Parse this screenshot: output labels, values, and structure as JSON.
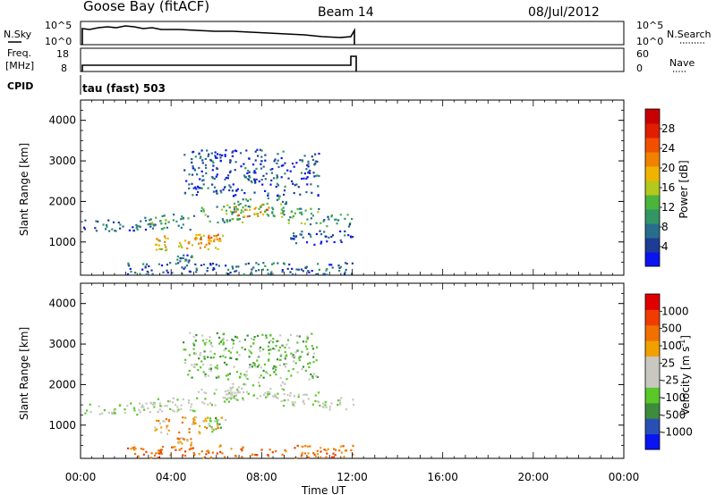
{
  "header": {
    "station": "Goose Bay (fitACF)",
    "beam": "Beam 14",
    "date": "08/Jul/2012"
  },
  "panels": {
    "nsky": {
      "label": "N.Sky",
      "tick_labels": [
        "10^5",
        "10^0"
      ],
      "right_label": "N.Search",
      "right_tick_labels": [
        "10^5",
        "10^0"
      ]
    },
    "freq": {
      "label_line1": "Freq.",
      "label_line2": "[MHz]",
      "tick_labels": [
        "18",
        "8"
      ],
      "right_label": "Nave",
      "right_tick_labels": [
        "60",
        "0"
      ]
    },
    "cpid": {
      "label": "CPID",
      "value": "tau (fast) 503"
    }
  },
  "chart_data": [
    {
      "type": "heatmap",
      "name": "power",
      "ylabel": "Slant Range [km]",
      "yticks": [
        "4000",
        "3000",
        "2000",
        "1000"
      ],
      "ytick_values": [
        4000,
        3000,
        2000,
        1000
      ],
      "ylim": [
        180,
        4500
      ],
      "xlim": [
        0,
        24
      ],
      "colorbar": {
        "label": "Power [dB]",
        "ticks": [
          "28",
          "24",
          "20",
          "16",
          "12",
          "8",
          "4"
        ],
        "tick_values": [
          28,
          24,
          20,
          16,
          12,
          8,
          4
        ],
        "range": [
          0,
          32
        ],
        "colors": [
          "#0a14f0",
          "#1e3c96",
          "#286e8c",
          "#329664",
          "#4bb43c",
          "#b4c81e",
          "#f0b400",
          "#f08200",
          "#f05000",
          "#e01e00",
          "#c80000"
        ]
      },
      "regions": [
        {
          "t0": 0.1,
          "t1": 3.6,
          "r0": 1280,
          "r1": 1560,
          "dB": 6
        },
        {
          "t0": 2.8,
          "t1": 5.0,
          "r0": 1320,
          "r1": 1700,
          "dB": 10
        },
        {
          "t0": 3.2,
          "t1": 3.9,
          "r0": 780,
          "r1": 1180,
          "dB": 18
        },
        {
          "t0": 4.3,
          "t1": 6.4,
          "r0": 820,
          "r1": 1220,
          "dB": 19
        },
        {
          "t0": 4.7,
          "t1": 6.0,
          "r0": 980,
          "r1": 1180,
          "dB": 22
        },
        {
          "t0": 4.2,
          "t1": 4.9,
          "r0": 520,
          "r1": 700,
          "dB": 7
        },
        {
          "t0": 5.0,
          "t1": 7.2,
          "r0": 1500,
          "r1": 1900,
          "dB": 12
        },
        {
          "t0": 6.4,
          "t1": 9.2,
          "r0": 1650,
          "r1": 2100,
          "dB": 11
        },
        {
          "t0": 6.8,
          "t1": 8.3,
          "r0": 1650,
          "r1": 1950,
          "dB": 20
        },
        {
          "t0": 8.8,
          "t1": 10.6,
          "r0": 1450,
          "r1": 1850,
          "dB": 12
        },
        {
          "t0": 10.6,
          "t1": 12.1,
          "r0": 1400,
          "r1": 1700,
          "dB": 9
        },
        {
          "t0": 9.2,
          "t1": 12.0,
          "r0": 950,
          "r1": 1300,
          "dB": 5
        },
        {
          "t0": 4.5,
          "t1": 10.5,
          "r0": 2150,
          "r1": 3300,
          "dB": 5
        },
        {
          "t0": 2.0,
          "t1": 12.0,
          "r0": 210,
          "r1": 520,
          "dB": 6
        }
      ]
    },
    {
      "type": "heatmap",
      "name": "velocity",
      "ylabel": "Slant Range [km]",
      "yticks": [
        "4000",
        "3000",
        "2000",
        "1000"
      ],
      "ytick_values": [
        4000,
        3000,
        2000,
        1000
      ],
      "ylim": [
        180,
        4500
      ],
      "xlim": [
        0,
        24
      ],
      "xticks": [
        "00:00",
        "04:00",
        "08:00",
        "12:00",
        "16:00",
        "20:00",
        "00:00"
      ],
      "xtick_values": [
        0,
        4,
        8,
        12,
        16,
        20,
        24
      ],
      "xlabel": "Time UT",
      "colorbar": {
        "label": "Velocity [m s",
        "label_sup": "-1",
        "label_end": "]",
        "ticks": [
          "1000",
          "500",
          "100",
          "25",
          "-25",
          "-100",
          "-500",
          "-1000"
        ],
        "colors": [
          "#0a14f0",
          "#2850b4",
          "#3c8c3c",
          "#5ac828",
          "#c8c8c0",
          "#c8c8c0",
          "#f0a000",
          "#f07000",
          "#f03c00",
          "#e00000"
        ]
      },
      "regions": [
        {
          "t0": 0.1,
          "t1": 3.6,
          "r0": 1280,
          "r1": 1560,
          "band": 4
        },
        {
          "t0": 2.8,
          "t1": 5.0,
          "r0": 1320,
          "r1": 1700,
          "band": 4
        },
        {
          "t0": 3.2,
          "t1": 3.9,
          "r0": 780,
          "r1": 1180,
          "band": 6
        },
        {
          "t0": 4.3,
          "t1": 6.4,
          "r0": 820,
          "r1": 1220,
          "band": 6
        },
        {
          "t0": 5.6,
          "t1": 6.2,
          "r0": 850,
          "r1": 1200,
          "band": 3
        },
        {
          "t0": 4.2,
          "t1": 4.9,
          "r0": 520,
          "r1": 700,
          "band": 6
        },
        {
          "t0": 5.0,
          "t1": 7.2,
          "r0": 1500,
          "r1": 1900,
          "band": 4
        },
        {
          "t0": 6.4,
          "t1": 9.2,
          "r0": 1650,
          "r1": 2100,
          "band": 4
        },
        {
          "t0": 8.8,
          "t1": 10.6,
          "r0": 1450,
          "r1": 1850,
          "band": 4
        },
        {
          "t0": 10.6,
          "t1": 12.1,
          "r0": 1400,
          "r1": 1700,
          "band": 4
        },
        {
          "t0": 4.5,
          "t1": 10.5,
          "r0": 2150,
          "r1": 3300,
          "band": 3
        },
        {
          "t0": 2.0,
          "t1": 12.0,
          "r0": 210,
          "r1": 520,
          "band": 7
        }
      ]
    }
  ]
}
